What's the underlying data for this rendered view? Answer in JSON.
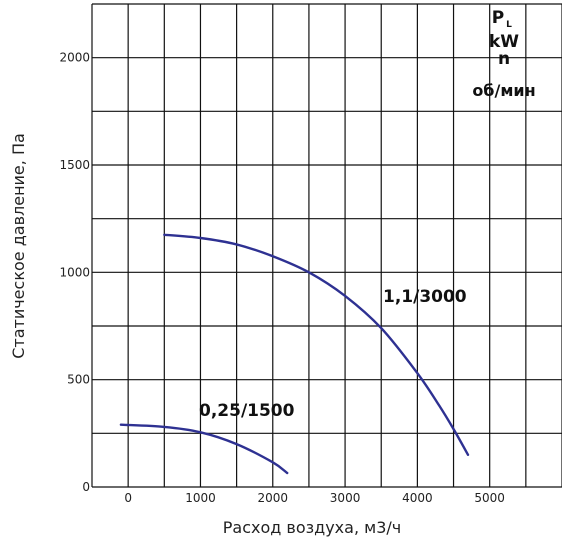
{
  "chart_data": {
    "type": "line",
    "xlabel": "Расход воздуха, м3/ч",
    "ylabel": "Статическое давление, Па",
    "xlim": [
      -500,
      6000
    ],
    "ylim": [
      0,
      2250
    ],
    "x_ticks": [
      "0",
      "1000",
      "2000",
      "3000",
      "4000",
      "5000"
    ],
    "y_ticks": [
      "0",
      "500",
      "1000",
      "1500",
      "2000"
    ],
    "grid": true,
    "legend_header": {
      "power_symbol": "P",
      "power_subscript": "L",
      "power_unit": "kW",
      "speed_symbol": "n",
      "speed_unit": "об/мин"
    },
    "series": [
      {
        "name": "1,1/3000",
        "color": "#2e3192",
        "x": [
          500,
          1000,
          1500,
          2000,
          2500,
          3000,
          3500,
          4000,
          4300,
          4500,
          4700
        ],
        "y": [
          1175,
          1160,
          1130,
          1075,
          1000,
          890,
          740,
          530,
          380,
          270,
          150
        ]
      },
      {
        "name": "0,25/1500",
        "color": "#2e3192",
        "x": [
          -100,
          500,
          1000,
          1500,
          2000,
          2200
        ],
        "y": [
          290,
          280,
          255,
          200,
          115,
          65
        ]
      }
    ]
  }
}
